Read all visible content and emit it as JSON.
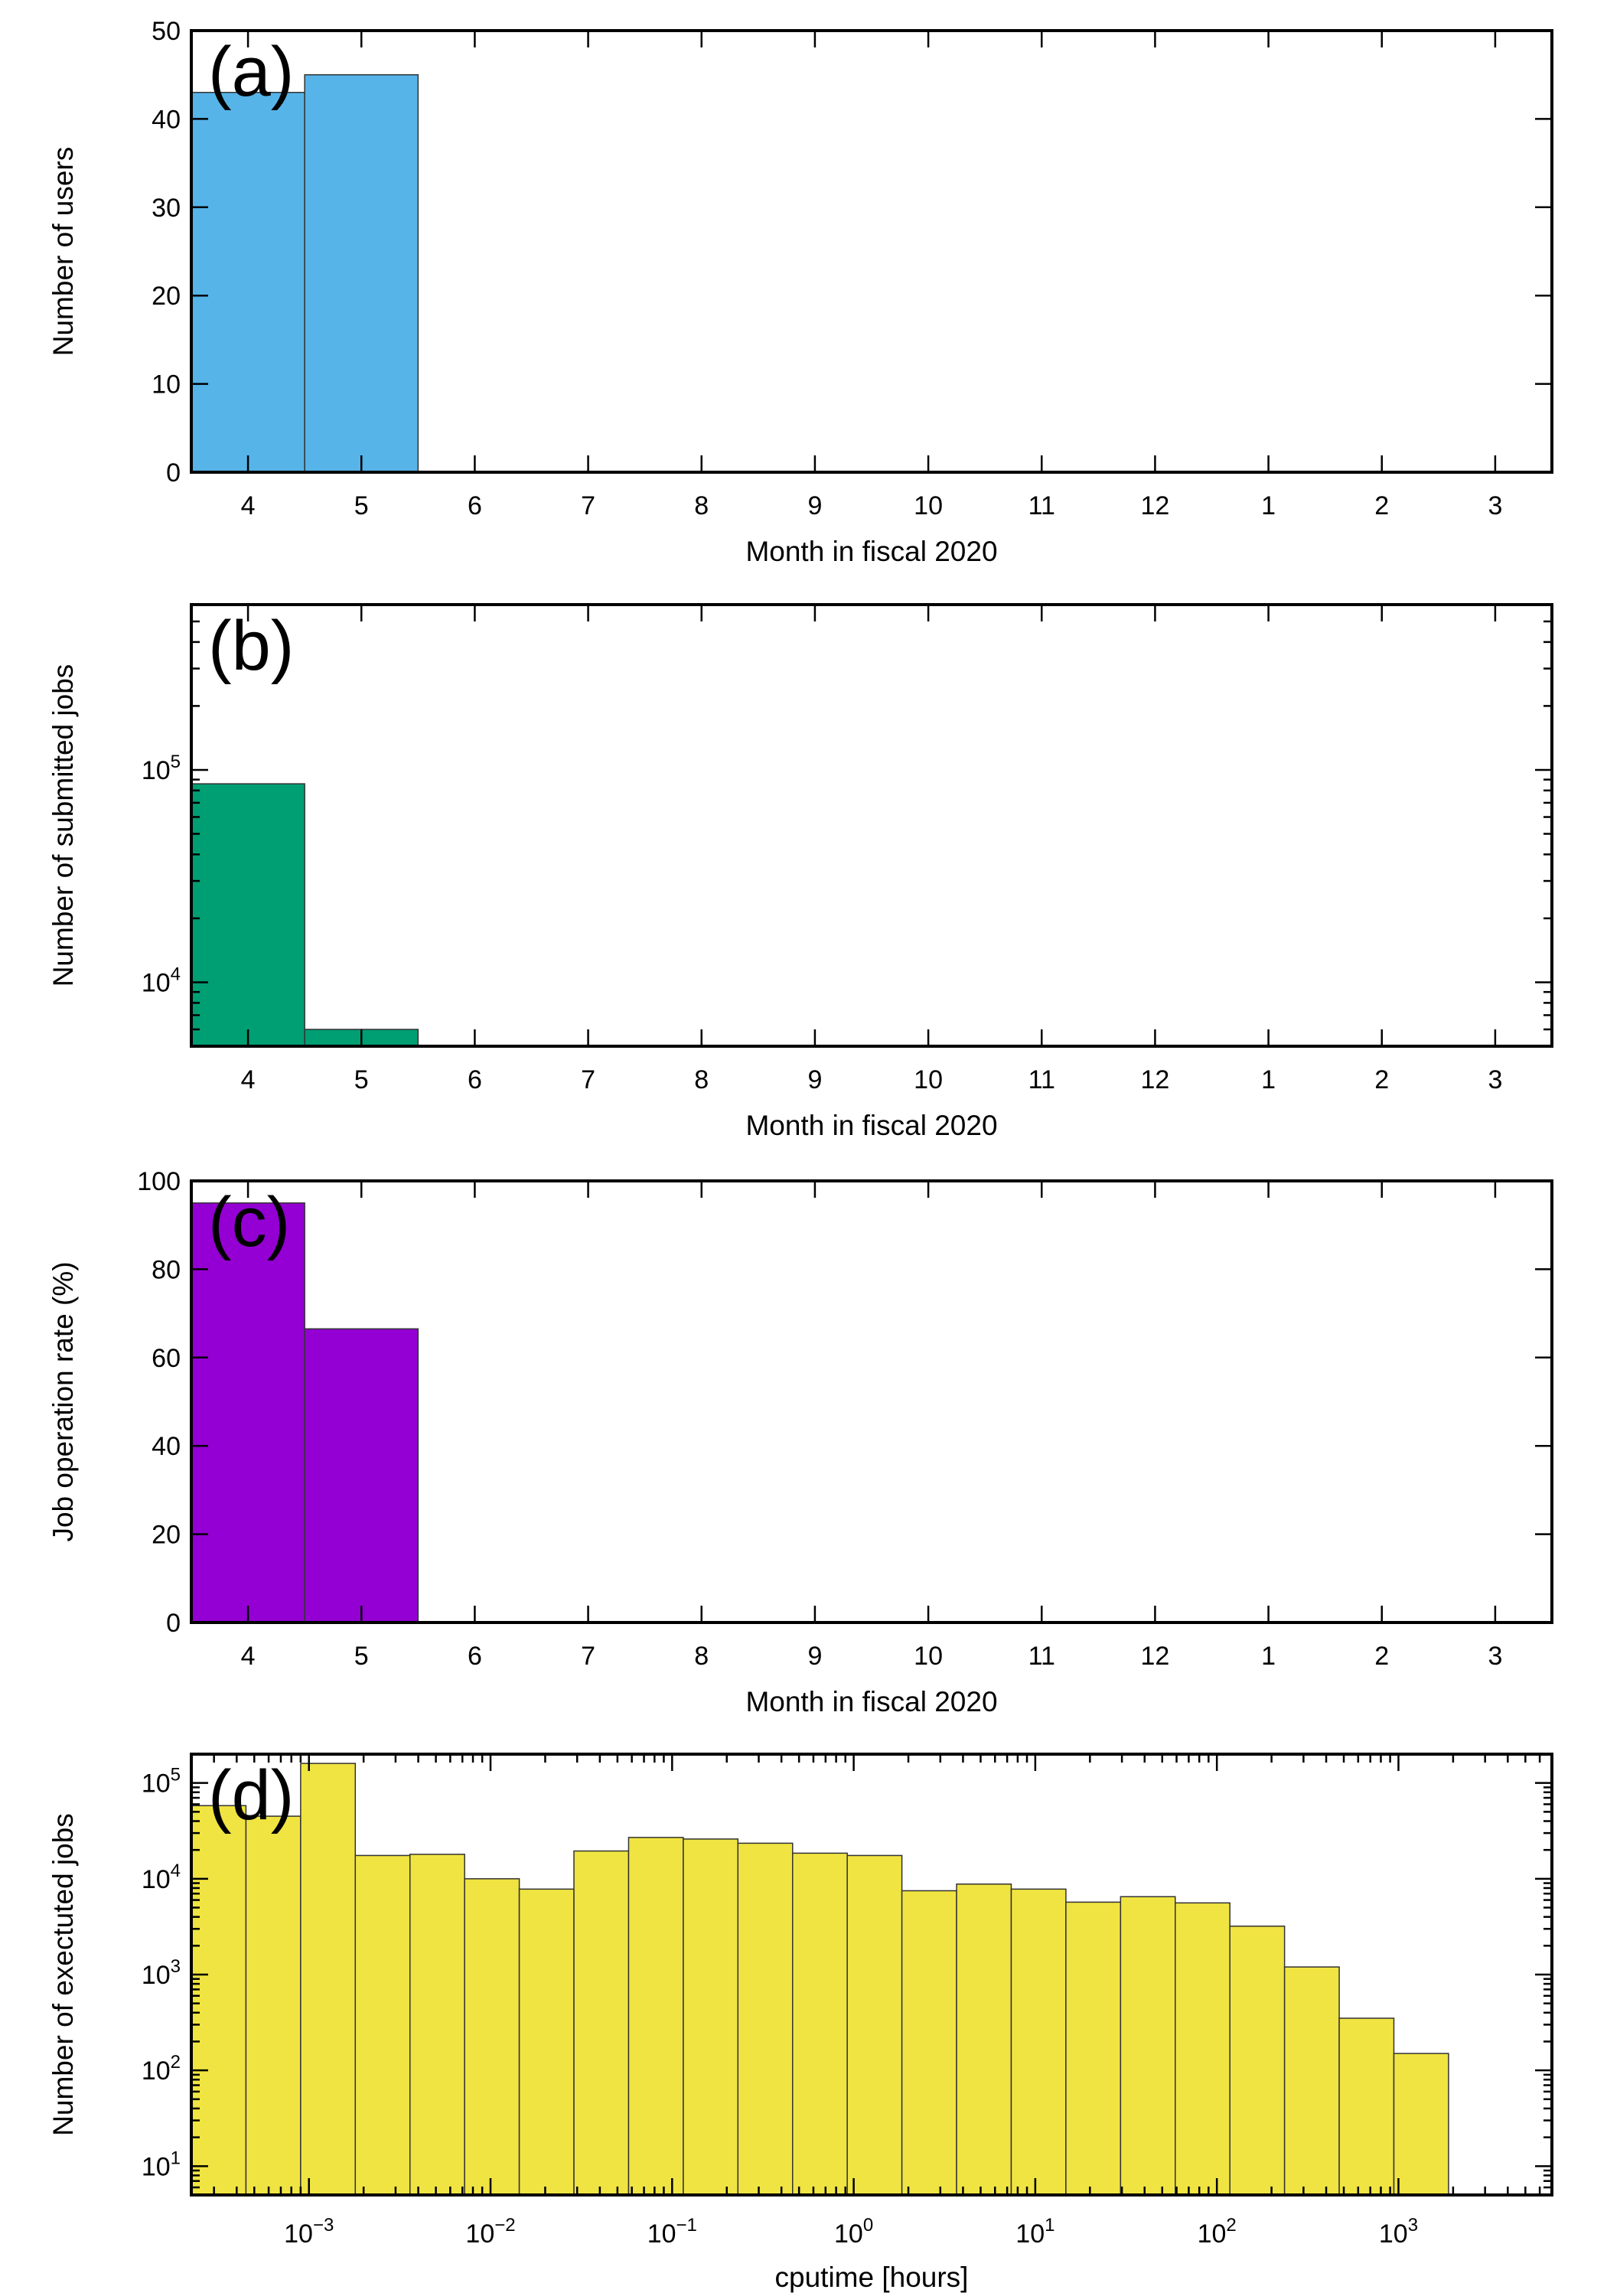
{
  "chart_data": [
    {
      "type": "bar",
      "panel_label": "(a)",
      "categories": [
        "4",
        "5",
        "6",
        "7",
        "8",
        "9",
        "10",
        "11",
        "12",
        "1",
        "2",
        "3"
      ],
      "values": [
        43,
        45,
        0,
        0,
        0,
        0,
        0,
        0,
        0,
        0,
        0,
        0
      ],
      "xlabel": "Month in fiscal 2020",
      "ylabel": "Number of users",
      "ylim": [
        0,
        50
      ],
      "yscale": "linear",
      "yticks": [
        {
          "value": 0,
          "label": "0"
        },
        {
          "value": 10,
          "label": "10"
        },
        {
          "value": 20,
          "label": "20"
        },
        {
          "value": 30,
          "label": "30"
        },
        {
          "value": 40,
          "label": "40"
        },
        {
          "value": 50,
          "label": "50"
        }
      ],
      "color": "#56B4E9",
      "grid": false
    },
    {
      "type": "bar",
      "panel_label": "(b)",
      "categories": [
        "4",
        "5",
        "6",
        "7",
        "8",
        "9",
        "10",
        "11",
        "12",
        "1",
        "2",
        "3"
      ],
      "values": [
        86000,
        6000,
        0,
        0,
        0,
        0,
        0,
        0,
        0,
        0,
        0,
        0
      ],
      "xlabel": "Month in fiscal 2020",
      "ylabel": "Number of submitted jobs",
      "ylim": [
        5000,
        600000
      ],
      "yscale": "log",
      "yticks": [
        {
          "value": 10000,
          "base": "10",
          "exp": "4"
        },
        {
          "value": 100000,
          "base": "10",
          "exp": "5"
        }
      ],
      "color": "#009E73",
      "grid": false
    },
    {
      "type": "bar",
      "panel_label": "(c)",
      "categories": [
        "4",
        "5",
        "6",
        "7",
        "8",
        "9",
        "10",
        "11",
        "12",
        "1",
        "2",
        "3"
      ],
      "values": [
        95,
        66.5,
        0,
        0,
        0,
        0,
        0,
        0,
        0,
        0,
        0,
        0
      ],
      "xlabel": "Month in fiscal 2020",
      "ylabel": "Job operation rate (%)",
      "ylim": [
        0,
        100
      ],
      "yscale": "linear",
      "yticks": [
        {
          "value": 0,
          "label": "0"
        },
        {
          "value": 20,
          "label": "20"
        },
        {
          "value": 40,
          "label": "40"
        },
        {
          "value": 60,
          "label": "60"
        },
        {
          "value": 80,
          "label": "80"
        },
        {
          "value": 100,
          "label": "100"
        }
      ],
      "color": "#9400D3",
      "grid": false
    },
    {
      "type": "histogram",
      "panel_label": "(d)",
      "bin_edges": [
        0.000225,
        0.00045,
        0.0009,
        0.0018,
        0.0036,
        0.0072,
        0.0144,
        0.0288,
        0.0576,
        0.1152,
        0.2304,
        0.4608,
        0.9216,
        1.8432,
        3.6864,
        7.3728,
        14.7456,
        29.4912,
        58.9824,
        117.9648,
        235.9296,
        471.8592,
        943.7184,
        1887.4368
      ],
      "values": [
        58000,
        45000,
        160000,
        17500,
        18000,
        10000,
        7800,
        19500,
        27000,
        26000,
        23500,
        18500,
        17500,
        7500,
        8800,
        7800,
        5700,
        6500,
        5600,
        3200,
        1200,
        350,
        150
      ],
      "xlabel": "cputime [hours]",
      "ylabel": "Number of exectuted jobs",
      "xlim": [
        0.000225,
        7000
      ],
      "ylim": [
        5,
        200000
      ],
      "xscale": "log",
      "yscale": "log",
      "xticks": [
        {
          "value": 0.001,
          "base": "10",
          "exp": "−3"
        },
        {
          "value": 0.01,
          "base": "10",
          "exp": "−2"
        },
        {
          "value": 0.1,
          "base": "10",
          "exp": "−1"
        },
        {
          "value": 1,
          "base": "10",
          "exp": "0"
        },
        {
          "value": 10,
          "base": "10",
          "exp": "1"
        },
        {
          "value": 100,
          "base": "10",
          "exp": "2"
        },
        {
          "value": 1000,
          "base": "10",
          "exp": "3"
        }
      ],
      "yticks": [
        {
          "value": 10,
          "base": "10",
          "exp": "1"
        },
        {
          "value": 100,
          "base": "10",
          "exp": "2"
        },
        {
          "value": 1000,
          "base": "10",
          "exp": "3"
        },
        {
          "value": 10000,
          "base": "10",
          "exp": "4"
        },
        {
          "value": 100000,
          "base": "10",
          "exp": "5"
        }
      ],
      "color": "#F0E442",
      "grid": false
    }
  ]
}
